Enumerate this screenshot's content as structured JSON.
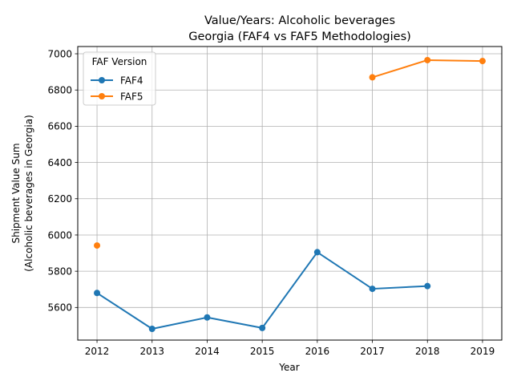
{
  "chart_data": {
    "type": "line",
    "title_line1": "Value/Years: Alcoholic beverages",
    "title_line2": "Georgia (FAF4 vs FAF5 Methodologies)",
    "xlabel": "Year",
    "ylabel_line1": "Shipment Value Sum",
    "ylabel_line2": "(Alcoholic beverages in Georgia)",
    "x_ticks": [
      "2012",
      "2013",
      "2014",
      "2015",
      "2016",
      "2017",
      "2018",
      "2019"
    ],
    "y_ticks": [
      "5600",
      "5800",
      "6000",
      "6200",
      "6400",
      "6600",
      "6800",
      "7000"
    ],
    "xlim": [
      2011.65,
      2019.35
    ],
    "ylim": [
      5420,
      7040
    ],
    "grid": true,
    "legend": {
      "title": "FAF Version",
      "placement": "top-left"
    },
    "series": [
      {
        "name": "FAF4",
        "color": "#1f77b4",
        "points": [
          {
            "x": 2012,
            "y": 5680
          },
          {
            "x": 2013,
            "y": 5482
          },
          {
            "x": 2014,
            "y": 5545
          },
          {
            "x": 2015,
            "y": 5487
          },
          {
            "x": 2016,
            "y": 5905
          },
          {
            "x": 2017,
            "y": 5703
          },
          {
            "x": 2018,
            "y": 5718
          }
        ]
      },
      {
        "name": "FAF5",
        "color": "#ff7f0e",
        "points": [
          {
            "x": 2012,
            "y": 5942
          },
          {
            "x": 2017,
            "y": 6870
          },
          {
            "x": 2018,
            "y": 6965
          },
          {
            "x": 2019,
            "y": 6960
          }
        ]
      }
    ]
  }
}
